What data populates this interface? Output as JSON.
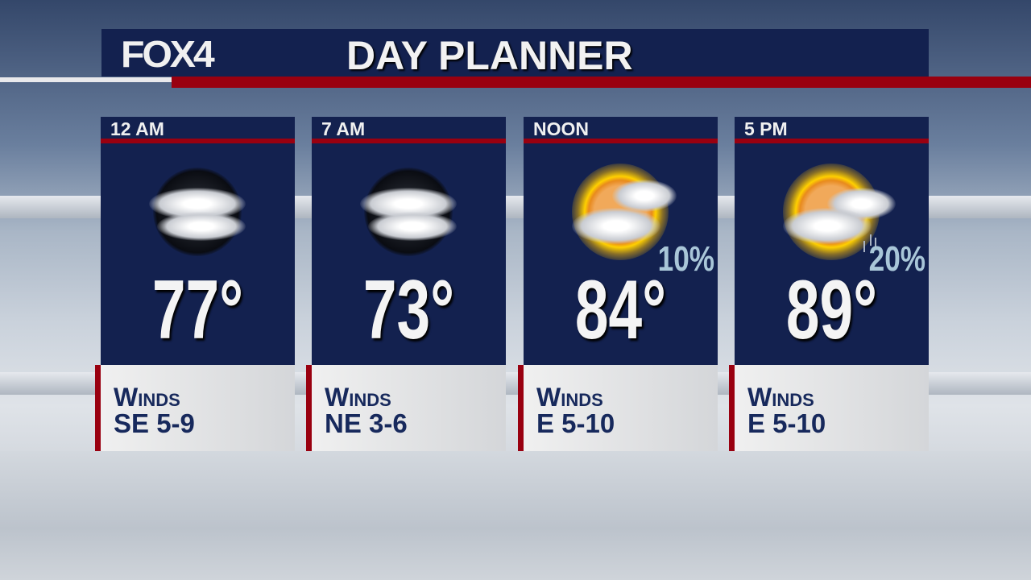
{
  "header": {
    "logo": "FOX4",
    "title": "DAY PLANNER"
  },
  "colors": {
    "navy": "#13214f",
    "red": "#990010",
    "pop": "#a9c6d8"
  },
  "periods": [
    {
      "time": "12 AM",
      "icon": "night-partly-cloudy-icon",
      "temp": "77°",
      "pop": "",
      "winds_label": "Winds",
      "winds": "SE 5-9"
    },
    {
      "time": "7 AM",
      "icon": "night-partly-cloudy-icon",
      "temp": "73°",
      "pop": "",
      "winds_label": "Winds",
      "winds": "NE 3-6"
    },
    {
      "time": "NOON",
      "icon": "partly-sunny-icon",
      "temp": "84°",
      "pop": "10%",
      "winds_label": "Winds",
      "winds": "E 5-10"
    },
    {
      "time": "5 PM",
      "icon": "sun-cloud-shower-icon",
      "temp": "89°",
      "pop": "20%",
      "winds_label": "Winds",
      "winds": "E 5-10"
    }
  ]
}
